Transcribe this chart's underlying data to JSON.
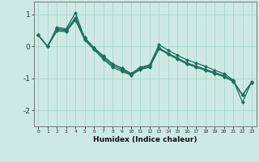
{
  "xlabel": "Humidex (Indice chaleur)",
  "ylabel": "",
  "bg_color": "#cceae3",
  "grid_color": "#aad4cc",
  "line_color": "#1e6e5e",
  "xlim": [
    -0.5,
    23.5
  ],
  "ylim": [
    -2.5,
    1.4
  ],
  "yticks": [
    -2,
    -1,
    0,
    1
  ],
  "xticks": [
    0,
    1,
    2,
    3,
    4,
    5,
    6,
    7,
    8,
    9,
    10,
    11,
    12,
    13,
    14,
    15,
    16,
    17,
    18,
    19,
    20,
    21,
    22,
    23
  ],
  "series": [
    [
      0.35,
      0.0,
      0.6,
      0.55,
      1.05,
      0.25,
      -0.05,
      -0.3,
      -0.55,
      -0.68,
      -0.85,
      -0.7,
      -0.58,
      0.05,
      -0.12,
      -0.28,
      -0.42,
      -0.52,
      -0.62,
      -0.75,
      -0.85,
      -1.05,
      -1.75,
      -1.1
    ],
    [
      0.35,
      0.0,
      0.55,
      0.52,
      0.9,
      0.28,
      -0.05,
      -0.3,
      -0.55,
      -0.68,
      -0.85,
      -0.65,
      -0.58,
      -0.05,
      -0.22,
      -0.37,
      -0.52,
      -0.62,
      -0.72,
      -0.82,
      -0.92,
      -1.08,
      -1.52,
      -1.12
    ],
    [
      0.35,
      0.0,
      0.52,
      0.5,
      0.87,
      0.25,
      -0.07,
      -0.35,
      -0.6,
      -0.73,
      -0.88,
      -0.7,
      -0.63,
      -0.05,
      -0.22,
      -0.37,
      -0.52,
      -0.62,
      -0.72,
      -0.82,
      -0.92,
      -1.08,
      -1.52,
      -1.12
    ],
    [
      0.35,
      0.0,
      0.48,
      0.46,
      0.82,
      0.2,
      -0.1,
      -0.4,
      -0.65,
      -0.78,
      -0.9,
      -0.72,
      -0.65,
      -0.08,
      -0.25,
      -0.4,
      -0.55,
      -0.65,
      -0.75,
      -0.85,
      -0.95,
      -1.1,
      -1.52,
      -1.12
    ]
  ]
}
